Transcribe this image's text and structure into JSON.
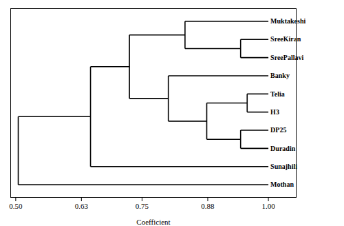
{
  "chart_data": {
    "type": "dendrogram",
    "xlabel": "Coefficient",
    "categories": [
      "Muktakeshi",
      "SreeKiran",
      "SreePallavi",
      "Banky",
      "Telia",
      "H3",
      "DP25",
      "Duradin",
      "Sunajhili",
      "Mothan"
    ],
    "leaf_x": 1.0,
    "tree": {
      "x": 0.505,
      "children": [
        {
          "x": 0.648,
          "children": [
            {
              "x": 0.725,
              "children": [
                {
                  "x": 0.835,
                  "children": [
                    "Muktakeshi",
                    {
                      "x": 0.945,
                      "children": [
                        "SreeKiran",
                        "SreePallavi"
                      ]
                    }
                  ]
                },
                {
                  "x": 0.802,
                  "children": [
                    "Banky",
                    {
                      "x": 0.878,
                      "children": [
                        {
                          "x": 0.958,
                          "children": [
                            "Telia",
                            "H3"
                          ]
                        },
                        {
                          "x": 0.945,
                          "children": [
                            "DP25",
                            "Duradin"
                          ]
                        }
                      ]
                    }
                  ]
                }
              ]
            },
            "Sunajhili"
          ]
        },
        "Mothan"
      ]
    },
    "color": "#000000",
    "xlim": [
      0.49,
      1.055
    ],
    "xticks": [
      {
        "value": 0.5,
        "label": "0.50"
      },
      {
        "value": 0.63,
        "label": "0.63"
      },
      {
        "value": 0.75,
        "label": "0.75"
      },
      {
        "value": 0.88,
        "label": "0.88"
      },
      {
        "value": 1.0,
        "label": "1.00"
      }
    ],
    "grid": false
  }
}
